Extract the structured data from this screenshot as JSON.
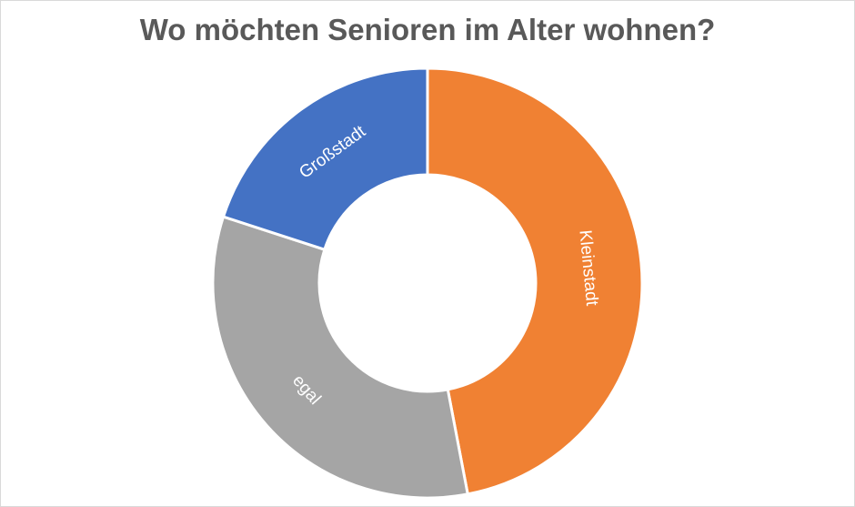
{
  "chart_data": {
    "type": "pie",
    "variant": "doughnut",
    "title": "Wo möchten Senioren im Alter wohnen?",
    "categories": [
      "Kleinstadt",
      "egal",
      "Großstadt"
    ],
    "values": [
      47,
      33,
      20
    ],
    "colors": [
      "#F08133",
      "#A5A5A5",
      "#4472C4"
    ],
    "legend": "none",
    "data_labels": "category names"
  }
}
